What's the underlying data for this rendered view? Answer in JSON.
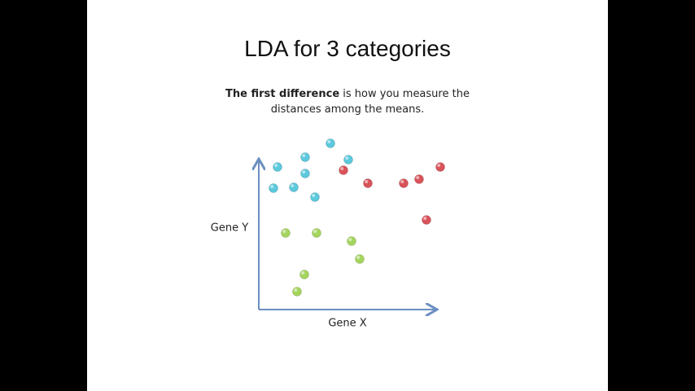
{
  "chart_data": {
    "type": "scatter",
    "title": "LDA for 3 categories",
    "subtitle": {
      "bold": "The first difference",
      "text": "is how you measure the distances among the means."
    },
    "xlabel": "Gene X",
    "ylabel": "Gene Y",
    "xlim": [
      0,
      230
    ],
    "ylim": [
      0,
      210
    ],
    "series": [
      {
        "color": "#5cc9dd",
        "x": [
          23,
          57,
          88,
          110,
          57,
          18,
          43,
          69
        ],
        "y": [
          175,
          187,
          204,
          184,
          167,
          149,
          150,
          138
        ]
      },
      {
        "color": "#d9535a",
        "x": [
          104,
          134,
          178,
          197,
          223,
          206
        ],
        "y": [
          171,
          155,
          155,
          160,
          175,
          110
        ]
      },
      {
        "color": "#a5d55e",
        "x": [
          33,
          71,
          114,
          124,
          56,
          47
        ],
        "y": [
          94,
          94,
          84,
          62,
          43,
          22
        ]
      }
    ]
  }
}
